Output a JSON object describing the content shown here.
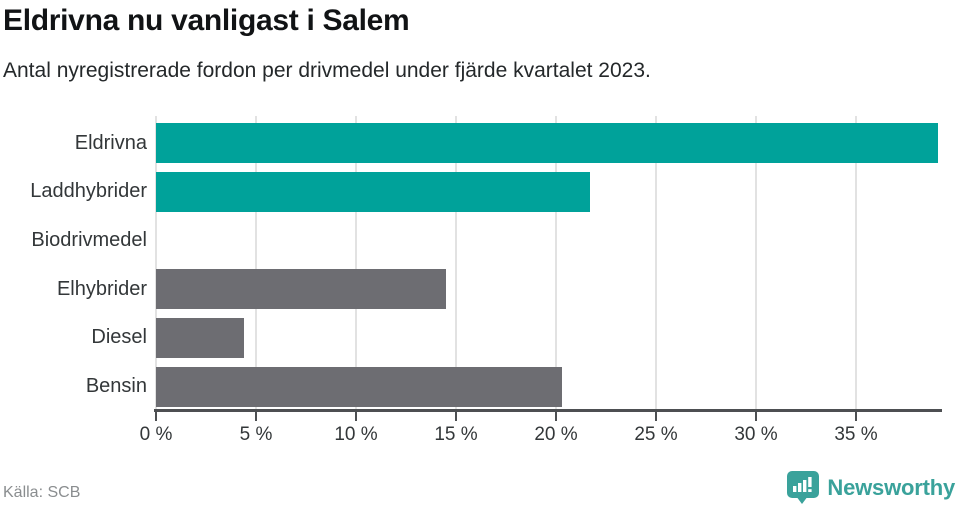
{
  "header": {
    "title": "Eldrivna nu vanligast i Salem",
    "subtitle": "Antal nyregistrerade fordon per drivmedel under fjärde kvartalet 2023."
  },
  "chart_data": {
    "type": "bar",
    "orientation": "horizontal",
    "categories": [
      "Eldrivna",
      "Laddhybrider",
      "Biodrivmedel",
      "Elhybrider",
      "Diesel",
      "Bensin"
    ],
    "values": [
      39.1,
      21.7,
      0,
      14.5,
      4.4,
      20.3
    ],
    "unit": "%",
    "title": "Eldrivna nu vanligast i Salem",
    "subtitle": "Antal nyregistrerade fordon per drivmedel under fjärde kvartalet 2023.",
    "xlabel": "",
    "ylabel": "",
    "xlim": [
      0,
      39.2
    ],
    "x_ticks": [
      0,
      5,
      10,
      15,
      20,
      25,
      30,
      35
    ],
    "x_tick_labels": [
      "0 %",
      "5 %",
      "10 %",
      "15 %",
      "20 %",
      "25 %",
      "30 %",
      "35 %"
    ],
    "grid": true,
    "legend": "none",
    "bar_colors": [
      "#00a29a",
      "#00a29a",
      "#6d6d72",
      "#6d6d72",
      "#6d6d72",
      "#6d6d72"
    ]
  },
  "colors": {
    "highlight_teal": "#00a29a",
    "neutral_gray": "#6d6d72",
    "axis": "#4d4f52",
    "gridline": "#e2e2e2",
    "brand_teal": "#3aa29b"
  },
  "footer": {
    "source": "Källa: SCB",
    "brand": "Newsworthy"
  }
}
